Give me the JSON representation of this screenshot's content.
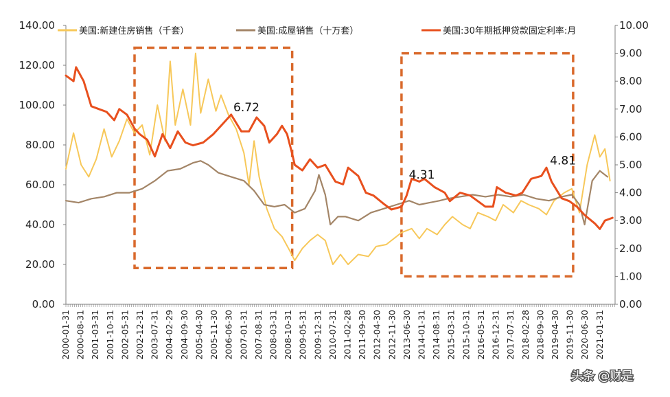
{
  "chart_data": {
    "type": "line",
    "x_labels": [
      "2000-01-31",
      "2000-08-31",
      "2001-03-31",
      "2001-10-31",
      "2002-05-31",
      "2002-12-31",
      "2003-07-31",
      "2004-02-29",
      "2004-09-30",
      "2005-04-30",
      "2005-11-30",
      "2006-06-30",
      "2007-01-31",
      "2007-08-31",
      "2008-03-31",
      "2008-10-31",
      "2009-05-31",
      "2009-12-31",
      "2010-07-31",
      "2011-02-28",
      "2011-09-30",
      "2012-04-30",
      "2012-11-30",
      "2013-06-30",
      "2014-01-31",
      "2014-08-31",
      "2015-03-31",
      "2015-10-31",
      "2016-05-31",
      "2016-12-31",
      "2017-07-31",
      "2018-02-28",
      "2018-09-30",
      "2019-04-30",
      "2019-11-30",
      "2020-06-30",
      "2021-01-31"
    ],
    "x_range": [
      2000.0,
      2021.6
    ],
    "y_left": {
      "ticks": [
        "0.00",
        "20.00",
        "40.00",
        "60.00",
        "80.00",
        "100.00",
        "120.00",
        "140.00"
      ],
      "range": [
        0,
        140
      ]
    },
    "y_right": {
      "ticks": [
        "0.00",
        "1.00",
        "2.00",
        "3.00",
        "4.00",
        "5.00",
        "6.00",
        "7.00",
        "8.00",
        "9.00",
        "10.00"
      ],
      "range": [
        0,
        10
      ]
    },
    "legend_position": "top",
    "series": [
      {
        "name": "美国:新建住房销售（千套）",
        "axis": "left",
        "color": "#F7C85A",
        "points": [
          [
            2000.0,
            68
          ],
          [
            2000.3,
            86
          ],
          [
            2000.6,
            70
          ],
          [
            2000.9,
            64
          ],
          [
            2001.2,
            73
          ],
          [
            2001.5,
            88
          ],
          [
            2001.8,
            74
          ],
          [
            2002.1,
            82
          ],
          [
            2002.4,
            93
          ],
          [
            2002.7,
            86
          ],
          [
            2003.0,
            90
          ],
          [
            2003.3,
            75
          ],
          [
            2003.6,
            100
          ],
          [
            2003.9,
            82
          ],
          [
            2004.1,
            122
          ],
          [
            2004.3,
            90
          ],
          [
            2004.6,
            108
          ],
          [
            2004.9,
            90
          ],
          [
            2005.1,
            126
          ],
          [
            2005.3,
            96
          ],
          [
            2005.6,
            113
          ],
          [
            2005.9,
            97
          ],
          [
            2006.1,
            105
          ],
          [
            2006.4,
            95
          ],
          [
            2006.7,
            88
          ],
          [
            2007.0,
            76
          ],
          [
            2007.2,
            60
          ],
          [
            2007.4,
            82
          ],
          [
            2007.6,
            64
          ],
          [
            2007.9,
            48
          ],
          [
            2008.2,
            38
          ],
          [
            2008.5,
            34
          ],
          [
            2008.8,
            27
          ],
          [
            2009.0,
            22
          ],
          [
            2009.3,
            28
          ],
          [
            2009.6,
            32
          ],
          [
            2009.9,
            35
          ],
          [
            2010.2,
            32
          ],
          [
            2010.5,
            20
          ],
          [
            2010.8,
            25
          ],
          [
            2011.1,
            20
          ],
          [
            2011.5,
            25
          ],
          [
            2011.9,
            24
          ],
          [
            2012.2,
            29
          ],
          [
            2012.6,
            30
          ],
          [
            2012.9,
            33
          ],
          [
            2013.2,
            36
          ],
          [
            2013.6,
            38
          ],
          [
            2013.9,
            33
          ],
          [
            2014.2,
            38
          ],
          [
            2014.6,
            35
          ],
          [
            2014.9,
            40
          ],
          [
            2015.2,
            44
          ],
          [
            2015.6,
            40
          ],
          [
            2015.9,
            38
          ],
          [
            2016.2,
            46
          ],
          [
            2016.6,
            44
          ],
          [
            2016.9,
            42
          ],
          [
            2017.2,
            50
          ],
          [
            2017.6,
            46
          ],
          [
            2017.9,
            52
          ],
          [
            2018.2,
            50
          ],
          [
            2018.6,
            48
          ],
          [
            2018.9,
            45
          ],
          [
            2019.2,
            52
          ],
          [
            2019.6,
            56
          ],
          [
            2019.9,
            58
          ],
          [
            2020.2,
            46
          ],
          [
            2020.5,
            70
          ],
          [
            2020.8,
            85
          ],
          [
            2021.0,
            74
          ],
          [
            2021.2,
            78
          ],
          [
            2021.4,
            62
          ]
        ]
      },
      {
        "name": "美国:成屋销售（十万套）",
        "axis": "left",
        "color": "#A38567",
        "points": [
          [
            2000.0,
            52
          ],
          [
            2000.5,
            51
          ],
          [
            2001.0,
            53
          ],
          [
            2001.5,
            54
          ],
          [
            2002.0,
            56
          ],
          [
            2002.5,
            56
          ],
          [
            2003.0,
            58
          ],
          [
            2003.5,
            62
          ],
          [
            2004.0,
            67
          ],
          [
            2004.5,
            68
          ],
          [
            2005.0,
            71
          ],
          [
            2005.3,
            72
          ],
          [
            2005.6,
            70
          ],
          [
            2006.0,
            66
          ],
          [
            2006.5,
            64
          ],
          [
            2007.0,
            62
          ],
          [
            2007.4,
            57
          ],
          [
            2007.8,
            50
          ],
          [
            2008.2,
            49
          ],
          [
            2008.6,
            50
          ],
          [
            2009.0,
            46
          ],
          [
            2009.4,
            48
          ],
          [
            2009.8,
            57
          ],
          [
            2009.95,
            65
          ],
          [
            2010.2,
            55
          ],
          [
            2010.4,
            40
          ],
          [
            2010.7,
            44
          ],
          [
            2011.0,
            44
          ],
          [
            2011.5,
            42
          ],
          [
            2012.0,
            46
          ],
          [
            2012.5,
            48
          ],
          [
            2013.0,
            50
          ],
          [
            2013.5,
            52
          ],
          [
            2013.9,
            50
          ],
          [
            2014.3,
            51
          ],
          [
            2014.7,
            52
          ],
          [
            2015.0,
            53
          ],
          [
            2015.5,
            54
          ],
          [
            2016.0,
            55
          ],
          [
            2016.5,
            54
          ],
          [
            2017.0,
            55
          ],
          [
            2017.5,
            54
          ],
          [
            2018.0,
            55
          ],
          [
            2018.5,
            53
          ],
          [
            2019.0,
            52
          ],
          [
            2019.5,
            54
          ],
          [
            2019.9,
            55
          ],
          [
            2020.2,
            50
          ],
          [
            2020.4,
            40
          ],
          [
            2020.7,
            62
          ],
          [
            2021.0,
            67
          ],
          [
            2021.3,
            64
          ]
        ]
      },
      {
        "name": "美国:30年期抵押贷款固定利率:月",
        "axis": "right",
        "color": "#E8501E",
        "points": [
          [
            2000.0,
            8.2
          ],
          [
            2000.3,
            8.0
          ],
          [
            2000.4,
            8.5
          ],
          [
            2000.7,
            8.0
          ],
          [
            2001.0,
            7.1
          ],
          [
            2001.3,
            7.0
          ],
          [
            2001.6,
            6.9
          ],
          [
            2001.9,
            6.6
          ],
          [
            2002.1,
            7.0
          ],
          [
            2002.4,
            6.8
          ],
          [
            2002.7,
            6.3
          ],
          [
            2002.9,
            6.1
          ],
          [
            2003.2,
            5.9
          ],
          [
            2003.5,
            5.3
          ],
          [
            2003.8,
            6.1
          ],
          [
            2004.1,
            5.6
          ],
          [
            2004.4,
            6.2
          ],
          [
            2004.7,
            5.8
          ],
          [
            2005.0,
            5.7
          ],
          [
            2005.4,
            5.8
          ],
          [
            2005.8,
            6.1
          ],
          [
            2006.2,
            6.5
          ],
          [
            2006.5,
            6.8
          ],
          [
            2006.9,
            6.2
          ],
          [
            2007.2,
            6.2
          ],
          [
            2007.5,
            6.7
          ],
          [
            2007.8,
            6.4
          ],
          [
            2008.0,
            5.8
          ],
          [
            2008.3,
            6.1
          ],
          [
            2008.5,
            6.4
          ],
          [
            2008.7,
            6.1
          ],
          [
            2008.9,
            5.4
          ],
          [
            2009.0,
            5.0
          ],
          [
            2009.3,
            4.8
          ],
          [
            2009.6,
            5.2
          ],
          [
            2009.9,
            4.9
          ],
          [
            2010.2,
            5.0
          ],
          [
            2010.6,
            4.4
          ],
          [
            2010.9,
            4.3
          ],
          [
            2011.1,
            4.9
          ],
          [
            2011.5,
            4.6
          ],
          [
            2011.8,
            4.0
          ],
          [
            2012.1,
            3.9
          ],
          [
            2012.5,
            3.6
          ],
          [
            2012.8,
            3.4
          ],
          [
            2013.2,
            3.5
          ],
          [
            2013.4,
            3.9
          ],
          [
            2013.6,
            4.5
          ],
          [
            2013.9,
            4.4
          ],
          [
            2014.1,
            4.5
          ],
          [
            2014.5,
            4.2
          ],
          [
            2014.9,
            4.0
          ],
          [
            2015.1,
            3.7
          ],
          [
            2015.5,
            4.0
          ],
          [
            2015.9,
            3.9
          ],
          [
            2016.2,
            3.7
          ],
          [
            2016.5,
            3.5
          ],
          [
            2016.8,
            3.5
          ],
          [
            2016.95,
            4.2
          ],
          [
            2017.3,
            4.0
          ],
          [
            2017.7,
            3.9
          ],
          [
            2017.95,
            4.0
          ],
          [
            2018.3,
            4.5
          ],
          [
            2018.7,
            4.6
          ],
          [
            2018.9,
            4.9
          ],
          [
            2019.1,
            4.4
          ],
          [
            2019.5,
            3.8
          ],
          [
            2019.8,
            3.7
          ],
          [
            2020.1,
            3.5
          ],
          [
            2020.4,
            3.2
          ],
          [
            2020.8,
            2.9
          ],
          [
            2021.0,
            2.7
          ],
          [
            2021.2,
            3.0
          ],
          [
            2021.5,
            3.1
          ]
        ]
      }
    ],
    "annotations": [
      {
        "text": "6.72",
        "x": 2007.1,
        "y_right": 6.72
      },
      {
        "text": "4.31",
        "x": 2014.0,
        "y_right": 4.31
      },
      {
        "text": "4.81",
        "x": 2019.55,
        "y_right": 4.81
      }
    ],
    "highlight_boxes": [
      {
        "x_from": 2002.7,
        "x_to": 2008.9,
        "y_right_from": 1.3,
        "y_right_to": 9.2
      },
      {
        "x_from": 2013.2,
        "x_to": 2019.95,
        "y_right_from": 1.0,
        "y_right_to": 9.0
      }
    ]
  },
  "watermark": "头条 @财是"
}
